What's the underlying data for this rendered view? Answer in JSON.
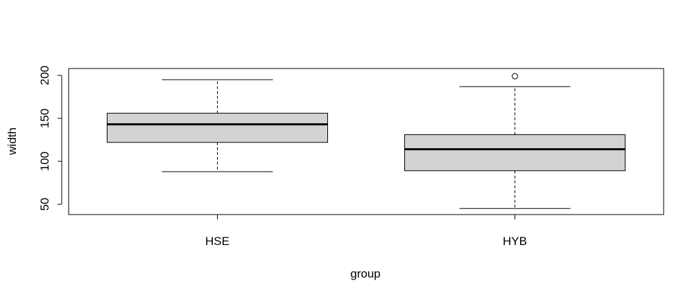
{
  "chart_data": {
    "type": "boxplot",
    "title": "",
    "xlabel": "group",
    "ylabel": "width",
    "categories": [
      "HSE",
      "HYB"
    ],
    "ylim": [
      38,
      208
    ],
    "yticks": [
      50,
      100,
      150,
      200
    ],
    "ytick_labels": [
      "50",
      "100",
      "150",
      "200"
    ],
    "boxes": [
      {
        "name": "HSE",
        "whisker_low": 88,
        "q1": 122,
        "median": 143,
        "q3": 156,
        "whisker_high": 195,
        "outliers": []
      },
      {
        "name": "HYB",
        "whisker_low": 45,
        "q1": 89,
        "median": 114,
        "q3": 131,
        "whisker_high": 187,
        "outliers": [
          199
        ]
      }
    ],
    "box_fill": "#d3d3d3",
    "grid": false,
    "legend": "none"
  }
}
